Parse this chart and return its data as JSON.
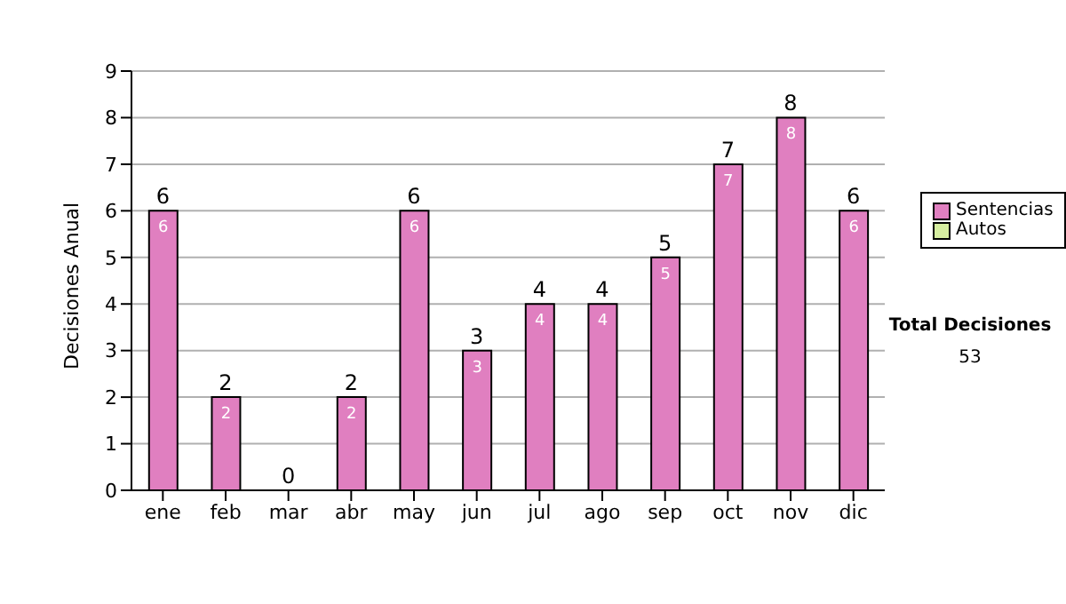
{
  "chart_data": {
    "type": "bar",
    "ylabel": "Decisiones Anual",
    "categories": [
      "ene",
      "feb",
      "mar",
      "abr",
      "may",
      "jun",
      "jul",
      "ago",
      "sep",
      "oct",
      "nov",
      "dic"
    ],
    "series": [
      {
        "name": "Sentencias",
        "color": "#e07fc0",
        "values": [
          6,
          2,
          0,
          2,
          6,
          3,
          4,
          4,
          5,
          7,
          8,
          6
        ],
        "value_labels": [
          "6",
          "2",
          null,
          "2",
          "6",
          "3",
          "4",
          "4",
          "5",
          "7",
          "8",
          "6"
        ]
      },
      {
        "name": "Autos",
        "color": "#d6eea0",
        "values": [
          0,
          0,
          0,
          0,
          0,
          0,
          0,
          0,
          0,
          0,
          0,
          0
        ]
      }
    ],
    "stacked": true,
    "totals": [
      "6",
      "2",
      "0",
      "2",
      "6",
      "3",
      "4",
      "4",
      "5",
      "7",
      "8",
      "6"
    ],
    "ylim": [
      0,
      9
    ],
    "yticks": [
      0,
      1,
      2,
      3,
      4,
      5,
      6,
      7,
      8,
      9
    ],
    "grid": "y",
    "legend": "right",
    "annotations": [
      "Total Decisiones",
      "53"
    ]
  }
}
